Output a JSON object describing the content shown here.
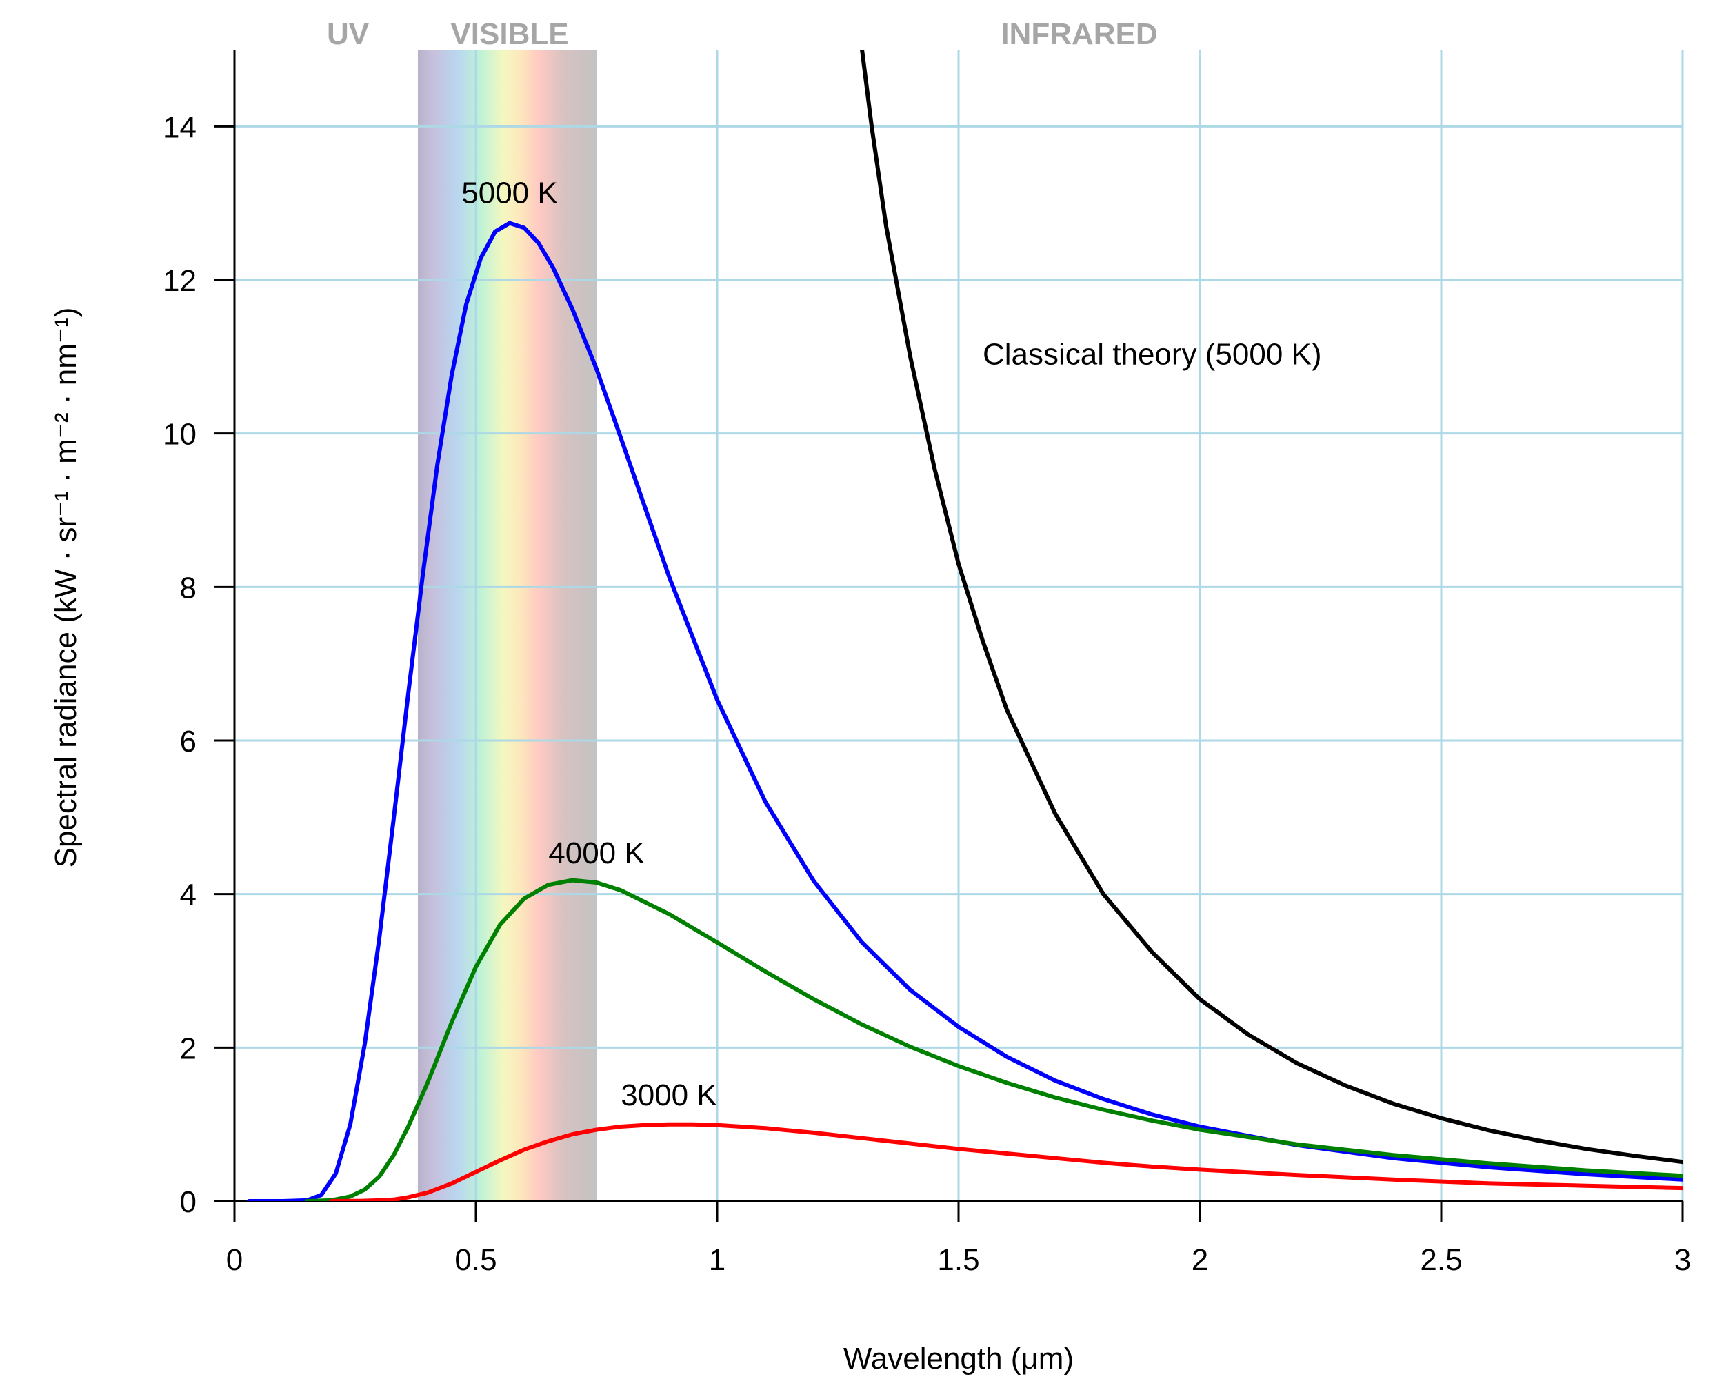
{
  "chart_data": {
    "type": "line",
    "xlabel": "Wavelength (μm)",
    "ylabel": "Spectral radiance (kW · sr⁻¹ · m⁻² · nm⁻¹)",
    "xlim": [
      0,
      3
    ],
    "ylim": [
      0,
      15
    ],
    "x_ticks": [
      "0",
      "0.5",
      "1",
      "1.5",
      "2",
      "2.5",
      "3"
    ],
    "y_ticks": [
      "0",
      "2",
      "4",
      "6",
      "8",
      "10",
      "12",
      "14"
    ],
    "grid": true,
    "regions": [
      {
        "label": "UV",
        "x": 0.235,
        "band": false
      },
      {
        "label": "VISIBLE",
        "x": 0.57,
        "band": true,
        "from": 0.38,
        "to": 0.75
      },
      {
        "label": "INFRARED",
        "x": 1.75,
        "band": false
      }
    ],
    "series": [
      {
        "name": "5000 K",
        "color": "#0000ff",
        "points": [
          [
            0.03,
            0
          ],
          [
            0.1,
            0
          ],
          [
            0.15,
            0.01
          ],
          [
            0.18,
            0.08
          ],
          [
            0.21,
            0.36
          ],
          [
            0.24,
            1.0
          ],
          [
            0.27,
            2.05
          ],
          [
            0.3,
            3.42
          ],
          [
            0.33,
            4.99
          ],
          [
            0.36,
            6.61
          ],
          [
            0.39,
            8.15
          ],
          [
            0.42,
            9.58
          ],
          [
            0.45,
            10.76
          ],
          [
            0.48,
            11.68
          ],
          [
            0.51,
            12.28
          ],
          [
            0.54,
            12.63
          ],
          [
            0.57,
            12.74
          ],
          [
            0.6,
            12.68
          ],
          [
            0.63,
            12.48
          ],
          [
            0.66,
            12.16
          ],
          [
            0.7,
            11.62
          ],
          [
            0.75,
            10.84
          ],
          [
            0.8,
            9.95
          ],
          [
            0.9,
            8.14
          ],
          [
            1.0,
            6.53
          ],
          [
            1.1,
            5.2
          ],
          [
            1.2,
            4.17
          ],
          [
            1.3,
            3.37
          ],
          [
            1.4,
            2.75
          ],
          [
            1.5,
            2.27
          ],
          [
            1.6,
            1.88
          ],
          [
            1.7,
            1.57
          ],
          [
            1.8,
            1.33
          ],
          [
            1.9,
            1.13
          ],
          [
            2.0,
            0.97
          ],
          [
            2.2,
            0.73
          ],
          [
            2.4,
            0.56
          ],
          [
            2.6,
            0.44
          ],
          [
            2.8,
            0.35
          ],
          [
            3.0,
            0.28
          ]
        ]
      },
      {
        "name": "4000 K",
        "color": "#008000",
        "points": [
          [
            0.15,
            0
          ],
          [
            0.2,
            0.01
          ],
          [
            0.24,
            0.06
          ],
          [
            0.27,
            0.15
          ],
          [
            0.3,
            0.32
          ],
          [
            0.33,
            0.6
          ],
          [
            0.36,
            0.97
          ],
          [
            0.4,
            1.54
          ],
          [
            0.45,
            2.33
          ],
          [
            0.5,
            3.05
          ],
          [
            0.55,
            3.6
          ],
          [
            0.6,
            3.94
          ],
          [
            0.65,
            4.12
          ],
          [
            0.7,
            4.18
          ],
          [
            0.75,
            4.15
          ],
          [
            0.8,
            4.05
          ],
          [
            0.9,
            3.74
          ],
          [
            1.0,
            3.37
          ],
          [
            1.1,
            2.99
          ],
          [
            1.2,
            2.63
          ],
          [
            1.3,
            2.3
          ],
          [
            1.4,
            2.01
          ],
          [
            1.5,
            1.76
          ],
          [
            1.6,
            1.54
          ],
          [
            1.7,
            1.35
          ],
          [
            1.8,
            1.19
          ],
          [
            1.9,
            1.05
          ],
          [
            2.0,
            0.93
          ],
          [
            2.2,
            0.74
          ],
          [
            2.4,
            0.6
          ],
          [
            2.6,
            0.49
          ],
          [
            2.8,
            0.4
          ],
          [
            3.0,
            0.33
          ]
        ]
      },
      {
        "name": "3000 K",
        "color": "#ff0000",
        "points": [
          [
            0.2,
            0
          ],
          [
            0.26,
            0.003
          ],
          [
            0.3,
            0.01
          ],
          [
            0.33,
            0.02
          ],
          [
            0.36,
            0.05
          ],
          [
            0.4,
            0.11
          ],
          [
            0.45,
            0.23
          ],
          [
            0.5,
            0.38
          ],
          [
            0.55,
            0.53
          ],
          [
            0.6,
            0.67
          ],
          [
            0.65,
            0.78
          ],
          [
            0.7,
            0.87
          ],
          [
            0.75,
            0.93
          ],
          [
            0.8,
            0.97
          ],
          [
            0.85,
            0.99
          ],
          [
            0.9,
            1.0
          ],
          [
            0.95,
            1.0
          ],
          [
            1.0,
            0.99
          ],
          [
            1.1,
            0.95
          ],
          [
            1.2,
            0.89
          ],
          [
            1.3,
            0.82
          ],
          [
            1.4,
            0.75
          ],
          [
            1.5,
            0.68
          ],
          [
            1.6,
            0.62
          ],
          [
            1.7,
            0.56
          ],
          [
            1.8,
            0.5
          ],
          [
            1.9,
            0.45
          ],
          [
            2.0,
            0.41
          ],
          [
            2.2,
            0.34
          ],
          [
            2.4,
            0.28
          ],
          [
            2.6,
            0.23
          ],
          [
            2.8,
            0.2
          ],
          [
            3.0,
            0.17
          ]
        ]
      },
      {
        "name": "Classical theory (5000 K)",
        "color": "#000000",
        "points": [
          [
            1.29,
            15.5
          ],
          [
            1.32,
            14.0
          ],
          [
            1.35,
            12.7
          ],
          [
            1.4,
            11.0
          ],
          [
            1.45,
            9.55
          ],
          [
            1.5,
            8.3
          ],
          [
            1.55,
            7.3
          ],
          [
            1.6,
            6.4
          ],
          [
            1.7,
            5.05
          ],
          [
            1.8,
            4.0
          ],
          [
            1.9,
            3.25
          ],
          [
            2.0,
            2.63
          ],
          [
            2.1,
            2.17
          ],
          [
            2.2,
            1.8
          ],
          [
            2.3,
            1.51
          ],
          [
            2.4,
            1.27
          ],
          [
            2.5,
            1.08
          ],
          [
            2.6,
            0.92
          ],
          [
            2.7,
            0.79
          ],
          [
            2.8,
            0.68
          ],
          [
            2.9,
            0.59
          ],
          [
            3.0,
            0.51
          ]
        ]
      }
    ],
    "annotations": [
      {
        "text": "5000 K",
        "x": 0.57,
        "y": 13.0
      },
      {
        "text": "4000 K",
        "x": 0.75,
        "y": 4.4
      },
      {
        "text": "3000 K",
        "x": 0.9,
        "y": 1.25
      },
      {
        "text": "Classical theory (5000 K)",
        "x": 1.55,
        "y": 10.9
      }
    ]
  }
}
